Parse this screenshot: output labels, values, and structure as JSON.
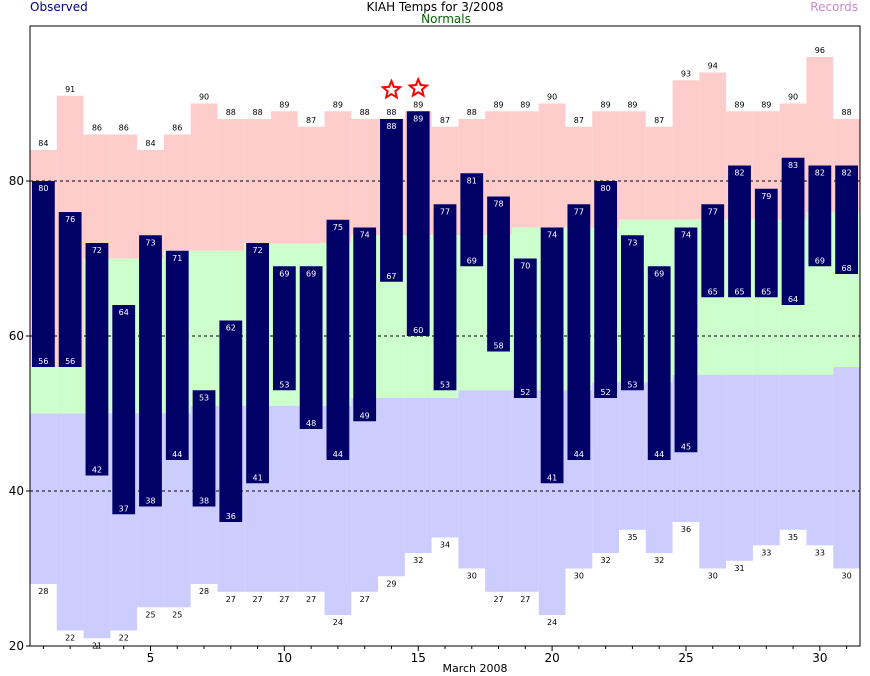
{
  "title": "KIAH Temps for 3/2008",
  "legend": {
    "observed": "Observed",
    "normals": "Normals",
    "records": "Records"
  },
  "colors": {
    "observed_bar": "#000066",
    "observed_legend": "#000080",
    "normals_fill": "#ccffcc",
    "normals_legend": "#006600",
    "record_high_fill": "#ffcccc",
    "record_low_fill": "#ccccff",
    "records_legend": "#cc88cc",
    "star": "#ff0000"
  },
  "chart_data": {
    "type": "bar",
    "xlabel": "March 2008",
    "ylim": [
      20,
      100
    ],
    "yticks": [
      20,
      40,
      60,
      80
    ],
    "xticks": [
      5,
      10,
      15,
      20,
      25,
      30
    ],
    "grid": {
      "dashed_lines_at": [
        40,
        60,
        80
      ]
    },
    "days": [
      1,
      2,
      3,
      4,
      5,
      6,
      7,
      8,
      9,
      10,
      11,
      12,
      13,
      14,
      15,
      16,
      17,
      18,
      19,
      20,
      21,
      22,
      23,
      24,
      25,
      26,
      27,
      28,
      29,
      30,
      31
    ],
    "series": [
      {
        "name": "Observed",
        "role": "observed_high",
        "values": [
          80,
          76,
          72,
          64,
          73,
          71,
          53,
          62,
          72,
          69,
          69,
          75,
          74,
          88,
          89,
          77,
          81,
          78,
          70,
          74,
          77,
          80,
          73,
          69,
          74,
          77,
          82,
          79,
          83,
          82,
          82
        ]
      },
      {
        "name": "Observed",
        "role": "observed_low",
        "values": [
          56,
          56,
          42,
          37,
          38,
          44,
          38,
          36,
          41,
          53,
          48,
          44,
          49,
          67,
          60,
          53,
          69,
          58,
          52,
          41,
          44,
          52,
          53,
          44,
          45,
          65,
          65,
          65,
          64,
          69,
          68
        ]
      },
      {
        "name": "Normals",
        "role": "normal_high",
        "values": [
          56,
          56,
          70,
          70,
          70,
          71,
          71,
          71,
          72,
          72,
          72,
          72,
          73,
          73,
          73,
          73,
          73,
          73,
          74,
          74,
          74,
          74,
          75,
          75,
          75,
          75,
          75,
          75,
          75,
          76,
          76
        ]
      },
      {
        "name": "Normals",
        "role": "normal_low",
        "values": [
          50,
          50,
          50,
          50,
          50,
          50,
          51,
          51,
          51,
          51,
          51,
          51,
          52,
          52,
          52,
          52,
          53,
          53,
          53,
          53,
          53,
          54,
          54,
          54,
          55,
          55,
          55,
          55,
          55,
          55,
          56
        ]
      },
      {
        "name": "Records",
        "role": "record_high",
        "values": [
          84,
          91,
          86,
          86,
          84,
          86,
          90,
          88,
          88,
          89,
          87,
          89,
          88,
          88,
          89,
          87,
          88,
          89,
          89,
          90,
          87,
          89,
          89,
          87,
          93,
          94,
          89,
          89,
          90,
          96,
          88
        ]
      },
      {
        "name": "Records",
        "role": "record_low",
        "values": [
          28,
          22,
          21,
          22,
          25,
          25,
          28,
          27,
          27,
          27,
          27,
          24,
          27,
          29,
          32,
          34,
          30,
          27,
          27,
          24,
          30,
          32,
          35,
          32,
          36,
          30,
          31,
          33,
          35,
          33,
          30
        ]
      }
    ],
    "annotations": {
      "record_set_days": [
        14,
        15
      ]
    }
  }
}
